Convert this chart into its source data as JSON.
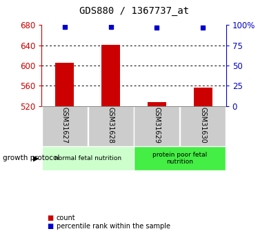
{
  "title": "GDS880 / 1367737_at",
  "samples": [
    "GSM31627",
    "GSM31628",
    "GSM31629",
    "GSM31630"
  ],
  "bar_values": [
    605,
    641,
    528,
    556
  ],
  "percentile_values": [
    98,
    98,
    97,
    97
  ],
  "ylim_left": [
    520,
    680
  ],
  "ylim_right": [
    0,
    100
  ],
  "yticks_left": [
    520,
    560,
    600,
    640,
    680
  ],
  "yticks_right": [
    0,
    25,
    50,
    75,
    100
  ],
  "yticklabels_right": [
    "0",
    "25",
    "50",
    "75",
    "100%"
  ],
  "bar_color": "#cc0000",
  "percentile_color": "#0000cc",
  "groups": [
    {
      "label": "normal fetal nutrition",
      "indices": [
        0,
        1
      ],
      "color": "#ccffcc"
    },
    {
      "label": "protein poor fetal\nnutrition",
      "indices": [
        2,
        3
      ],
      "color": "#44ee44"
    }
  ],
  "group_label": "growth protocol",
  "legend_count_label": "count",
  "legend_percentile_label": "percentile rank within the sample",
  "tick_label_bg": "#cccccc",
  "bar_width": 0.4
}
